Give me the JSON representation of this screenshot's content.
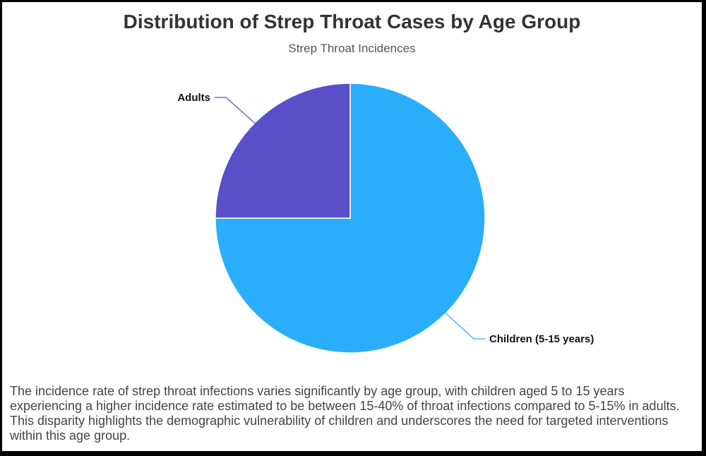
{
  "chart_data": {
    "type": "pie",
    "title": "Distribution of Strep Throat Cases by Age Group",
    "subtitle": "Strep Throat Incidences",
    "slices": [
      {
        "label": "Children (5-15 years)",
        "value": 75,
        "color": "#2aaefb"
      },
      {
        "label": "Adults",
        "value": 25,
        "color": "#5a4fc8"
      }
    ]
  },
  "description": "The incidence rate of strep throat infections varies significantly by age group, with children aged 5 to 15 years experiencing a higher incidence rate estimated to be between 15-40% of throat infections compared to 5-15% in adults. This disparity highlights the demographic vulnerability of children and underscores the need for targeted interventions within this age group."
}
